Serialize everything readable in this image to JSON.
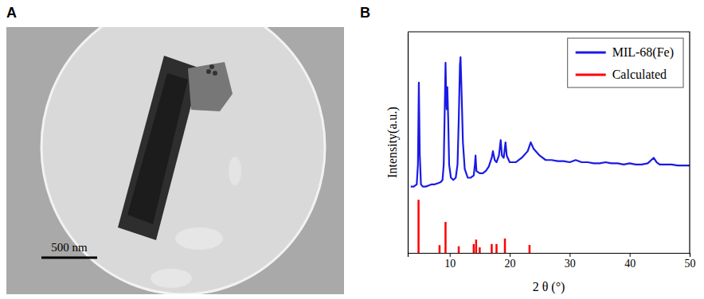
{
  "panels": {
    "A": {
      "label": "A",
      "scale_bar": "500 nm"
    },
    "B": {
      "label": "B"
    }
  },
  "chart_data": {
    "type": "line",
    "x_label": "2 θ (°)",
    "y_label": "Intensity(a.u.)",
    "xlim": [
      3,
      50
    ],
    "xticks": [
      10,
      20,
      30,
      40,
      50
    ],
    "ylim": [
      0,
      100
    ],
    "yticks": [],
    "tick_labels": "x",
    "grid": false,
    "legend": "upper right",
    "series": [
      {
        "name": "MIL-68(Fe)",
        "type": "line",
        "color": "#1a1ae6",
        "x": [
          3.5,
          4.0,
          4.5,
          4.7,
          4.85,
          5.0,
          5.2,
          5.5,
          6.0,
          6.5,
          7.0,
          7.5,
          8.0,
          8.5,
          8.8,
          9.0,
          9.2,
          9.3,
          9.4,
          9.5,
          9.6,
          9.75,
          9.9,
          10.2,
          10.6,
          11.0,
          11.3,
          11.5,
          11.7,
          11.8,
          11.95,
          12.2,
          12.5,
          13.0,
          13.5,
          14.0,
          14.2,
          14.3,
          14.45,
          15.0,
          15.5,
          16.0,
          16.5,
          17.0,
          17.2,
          17.5,
          17.8,
          18.2,
          18.5,
          18.7,
          19.0,
          19.3,
          19.5,
          20,
          21,
          22,
          23,
          23.5,
          24,
          25,
          26,
          27,
          28,
          29,
          30,
          31,
          32,
          33,
          34,
          35,
          36,
          37,
          38,
          39,
          40,
          41,
          42,
          43,
          44,
          44.5,
          45,
          46,
          47,
          48,
          49,
          50
        ],
        "values": [
          30,
          30,
          31,
          40,
          77,
          45,
          31,
          30,
          30,
          30.5,
          31,
          31,
          31.5,
          32,
          33,
          40,
          70,
          86,
          72,
          65,
          75,
          60,
          40,
          34,
          33,
          34,
          40,
          60,
          85,
          88.5,
          75,
          50,
          38,
          34,
          34,
          35,
          40,
          44,
          37,
          36,
          36,
          37,
          39,
          43,
          46,
          42,
          41,
          44,
          51,
          44,
          43,
          50,
          44,
          41,
          41,
          43,
          46,
          50,
          47,
          44,
          42,
          42,
          41.5,
          41.5,
          41,
          42,
          41,
          41,
          40.5,
          40.5,
          41,
          40.5,
          40.5,
          40,
          40.5,
          40,
          40,
          40.5,
          43,
          41,
          40,
          40,
          40,
          39.5,
          39.5,
          39.5
        ]
      },
      {
        "name": "Calculated",
        "type": "bar",
        "color": "#ff0000",
        "x": [
          4.8,
          8.3,
          9.3,
          11.5,
          14.0,
          14.4,
          15.0,
          17.0,
          17.8,
          19.2,
          23.3
        ],
        "values": [
          24,
          3.5,
          14,
          3,
          4,
          6,
          2.5,
          4,
          4,
          6.5,
          3.6
        ]
      }
    ]
  }
}
